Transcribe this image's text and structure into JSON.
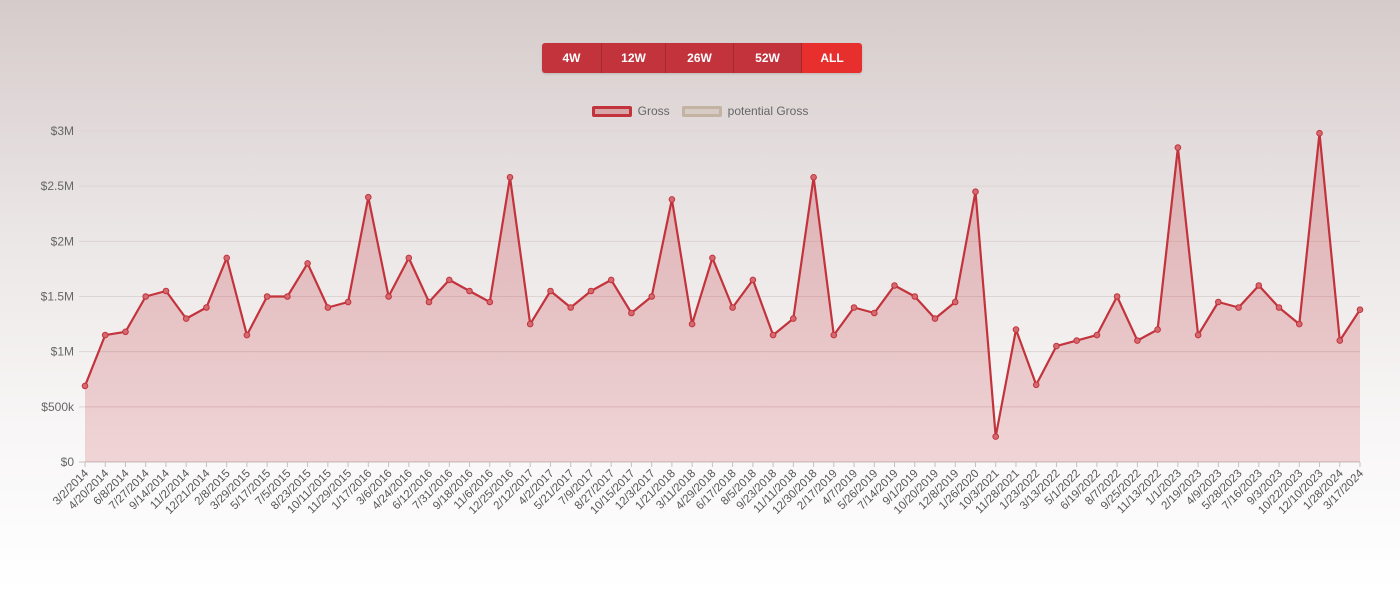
{
  "range_buttons": [
    "4W",
    "12W",
    "26W",
    "52W",
    "ALL"
  ],
  "legend": [
    {
      "label": "Gross",
      "color": "#c2333c"
    },
    {
      "label": "potential Gross",
      "color": "#c3b3a2"
    }
  ],
  "chart_data": {
    "type": "area",
    "series": [
      {
        "name": "Gross",
        "color": "#c2333c"
      },
      {
        "name": "potential Gross",
        "color": "#c3b3a2"
      }
    ],
    "yticks": [
      "$0",
      "$500k",
      "$1M",
      "$1.5M",
      "$2M",
      "$2.5M",
      "$3M"
    ],
    "ylim": [
      0,
      3000000
    ],
    "xlim": [
      "2014-03-02",
      "2024-03-24"
    ],
    "xtick_labels": [
      "3/2/2014",
      "4/20/2014",
      "6/8/2014",
      "7/27/2014",
      "9/14/2014",
      "11/2/2014",
      "12/21/2014",
      "2/8/2015",
      "3/29/2015",
      "5/17/2015",
      "7/5/2015",
      "8/23/2015",
      "10/11/2015",
      "11/29/2015",
      "1/17/2016",
      "3/6/2016",
      "4/24/2016",
      "6/12/2016",
      "7/31/2016",
      "9/18/2016",
      "11/6/2016",
      "12/25/2016",
      "2/12/2017",
      "4/2/2017",
      "5/21/2017",
      "7/9/2017",
      "8/27/2017",
      "10/15/2017",
      "12/3/2017",
      "1/21/2018",
      "3/11/2018",
      "4/29/2018",
      "6/17/2018",
      "8/5/2018",
      "9/23/2018",
      "11/11/2018",
      "12/30/2018",
      "2/17/2019",
      "4/7/2019",
      "5/26/2019",
      "7/14/2019",
      "9/1/2019",
      "10/20/2019",
      "12/8/2019",
      "1/26/2020",
      "10/3/2021",
      "11/28/2021",
      "1/23/2022",
      "3/13/2022",
      "5/1/2022",
      "6/19/2022",
      "8/7/2022",
      "9/25/2022",
      "11/13/2022",
      "1/1/2023",
      "2/19/2023",
      "4/9/2023",
      "5/28/2023",
      "7/16/2023",
      "9/3/2023",
      "10/22/2023",
      "12/10/2023",
      "1/28/2024",
      "3/17/2024"
    ],
    "anchors": [
      {
        "x": "3/2/2014",
        "y": 690000
      },
      {
        "x": "4/20/2014",
        "y": 1150000
      },
      {
        "x": "6/8/2014",
        "y": 1180000
      },
      {
        "x": "7/27/2014",
        "y": 1500000
      },
      {
        "x": "9/14/2014",
        "y": 1550000
      },
      {
        "x": "11/2/2014",
        "y": 1300000
      },
      {
        "x": "12/21/2014",
        "y": 1400000
      },
      {
        "x": "2/8/2015",
        "y": 1850000
      },
      {
        "x": "3/29/2015",
        "y": 1150000
      },
      {
        "x": "5/17/2015",
        "y": 1500000
      },
      {
        "x": "7/5/2015",
        "y": 1500000
      },
      {
        "x": "8/23/2015",
        "y": 1800000
      },
      {
        "x": "10/11/2015",
        "y": 1400000
      },
      {
        "x": "11/29/2015",
        "y": 1450000
      },
      {
        "x": "1/17/2016",
        "y": 2400000
      },
      {
        "x": "3/6/2016",
        "y": 1500000
      },
      {
        "x": "4/24/2016",
        "y": 1850000
      },
      {
        "x": "6/12/2016",
        "y": 1450000
      },
      {
        "x": "7/31/2016",
        "y": 1650000
      },
      {
        "x": "9/18/2016",
        "y": 1550000
      },
      {
        "x": "11/6/2016",
        "y": 1450000
      },
      {
        "x": "12/25/2016",
        "y": 2580000
      },
      {
        "x": "2/12/2017",
        "y": 1250000
      },
      {
        "x": "4/2/2017",
        "y": 1550000
      },
      {
        "x": "5/21/2017",
        "y": 1400000
      },
      {
        "x": "7/9/2017",
        "y": 1550000
      },
      {
        "x": "8/27/2017",
        "y": 1650000
      },
      {
        "x": "10/15/2017",
        "y": 1350000
      },
      {
        "x": "12/3/2017",
        "y": 1500000
      },
      {
        "x": "1/21/2018",
        "y": 2380000
      },
      {
        "x": "3/11/2018",
        "y": 1250000
      },
      {
        "x": "4/29/2018",
        "y": 1850000
      },
      {
        "x": "6/17/2018",
        "y": 1400000
      },
      {
        "x": "8/5/2018",
        "y": 1650000
      },
      {
        "x": "9/23/2018",
        "y": 1150000
      },
      {
        "x": "11/11/2018",
        "y": 1300000
      },
      {
        "x": "12/30/2018",
        "y": 2580000
      },
      {
        "x": "2/17/2019",
        "y": 1150000
      },
      {
        "x": "4/7/2019",
        "y": 1400000
      },
      {
        "x": "5/26/2019",
        "y": 1350000
      },
      {
        "x": "7/14/2019",
        "y": 1600000
      },
      {
        "x": "9/1/2019",
        "y": 1500000
      },
      {
        "x": "10/20/2019",
        "y": 1300000
      },
      {
        "x": "12/8/2019",
        "y": 1450000
      },
      {
        "x": "1/26/2020",
        "y": 2450000
      },
      {
        "x": "10/3/2021",
        "y": 230000
      },
      {
        "x": "11/28/2021",
        "y": 1200000
      },
      {
        "x": "1/23/2022",
        "y": 700000
      },
      {
        "x": "3/13/2022",
        "y": 1050000
      },
      {
        "x": "5/1/2022",
        "y": 1100000
      },
      {
        "x": "6/19/2022",
        "y": 1150000
      },
      {
        "x": "8/7/2022",
        "y": 1500000
      },
      {
        "x": "9/25/2022",
        "y": 1100000
      },
      {
        "x": "11/13/2022",
        "y": 1200000
      },
      {
        "x": "1/1/2023",
        "y": 2850000
      },
      {
        "x": "2/19/2023",
        "y": 1150000
      },
      {
        "x": "4/9/2023",
        "y": 1450000
      },
      {
        "x": "5/28/2023",
        "y": 1400000
      },
      {
        "x": "7/16/2023",
        "y": 1600000
      },
      {
        "x": "9/3/2023",
        "y": 1400000
      },
      {
        "x": "10/22/2023",
        "y": 1250000
      },
      {
        "x": "12/10/2023",
        "y": 2980000
      },
      {
        "x": "1/28/2024",
        "y": 1100000
      },
      {
        "x": "3/17/2024",
        "y": 1380000
      }
    ]
  }
}
